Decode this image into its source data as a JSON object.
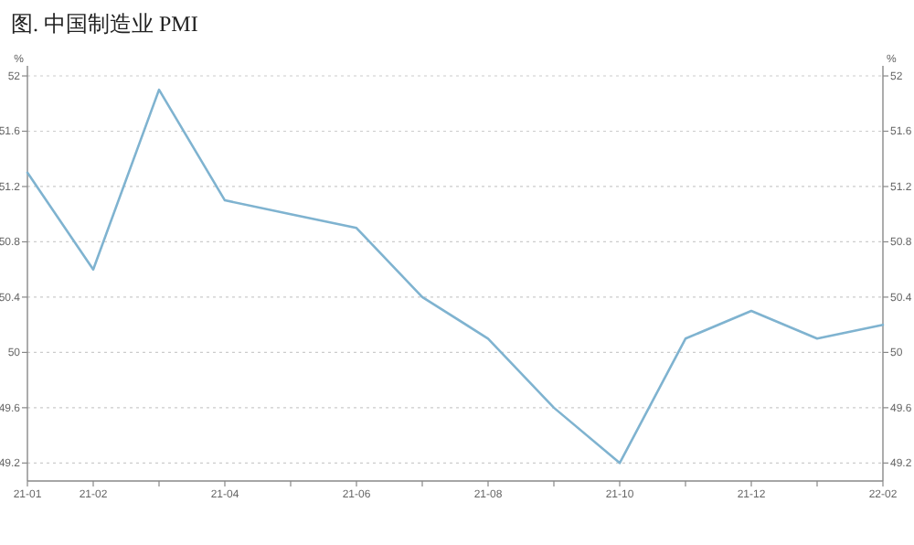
{
  "chart_data": {
    "type": "line",
    "title": "图. 中国制造业 PMI",
    "ylabel": "%",
    "y2label": "%",
    "categories": [
      "21-01",
      "21-02",
      null,
      "21-04",
      null,
      "21-06",
      null,
      "21-08",
      null,
      "21-10",
      null,
      "21-12",
      null,
      "22-02"
    ],
    "series": [
      {
        "color": "#7fb3d0",
        "values": [
          51.3,
          50.6,
          51.9,
          51.1,
          51.0,
          50.9,
          50.4,
          50.1,
          49.6,
          49.2,
          50.1,
          50.3,
          50.1,
          50.2
        ]
      }
    ],
    "ylim": [
      49.07,
      52.02
    ],
    "yticks": [
      49.2,
      49.6,
      50,
      50.4,
      50.8,
      51.2,
      51.6,
      52
    ],
    "y2lim": [
      49.07,
      52.02
    ],
    "y2ticks": [
      49.2,
      49.6,
      50,
      50.4,
      50.8,
      51.2,
      51.6,
      52
    ],
    "grid": "y",
    "marker": "none",
    "line_style": "solid"
  }
}
